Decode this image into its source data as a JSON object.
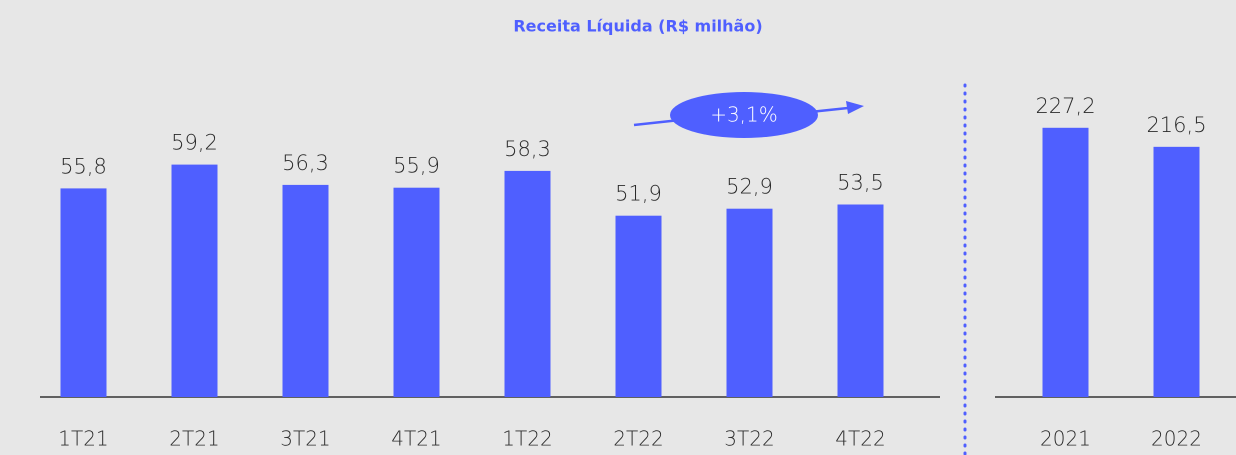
{
  "chart_data": [
    {
      "type": "bar",
      "title": "Receita Líquida (R$ milhão)",
      "categories": [
        "1T21",
        "2T21",
        "3T21",
        "4T21",
        "1T22",
        "2T22",
        "3T22",
        "4T22"
      ],
      "values": [
        55.8,
        59.2,
        56.3,
        55.9,
        58.3,
        51.9,
        52.9,
        53.5
      ],
      "value_labels": [
        "55,8",
        "59,2",
        "56,3",
        "55,9",
        "58,3",
        "51,9",
        "52,9",
        "53,5"
      ],
      "color": "#4f5fff",
      "ylim": [
        26,
        62
      ],
      "annotation": "+3,1%"
    },
    {
      "type": "bar",
      "categories": [
        "2021",
        "2022"
      ],
      "values": [
        227.2,
        216.5
      ],
      "value_labels": [
        "227,2",
        "216,5"
      ],
      "color": "#4f5fff",
      "ylim": [
        76,
        240
      ]
    }
  ]
}
